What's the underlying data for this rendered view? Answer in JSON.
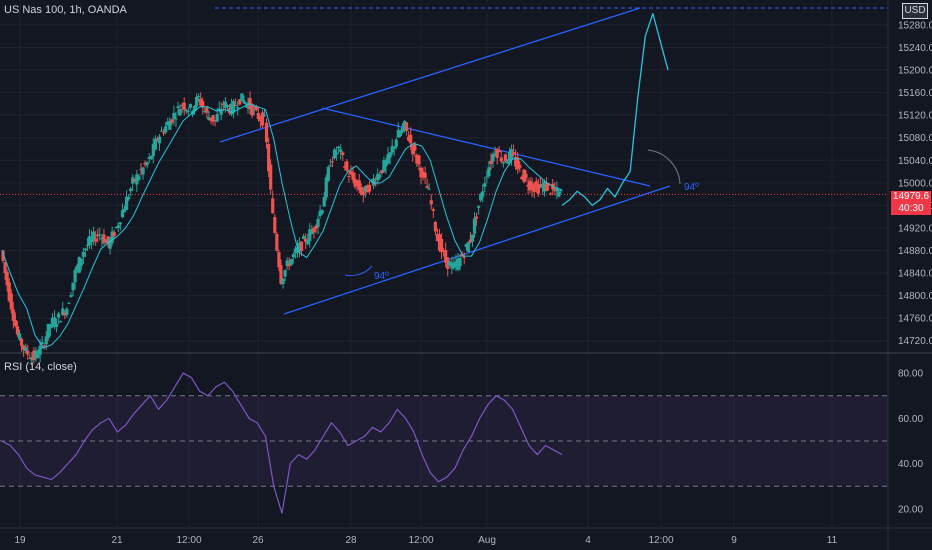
{
  "header": {
    "symbol_title": "US Nas 100, 1h, OANDA",
    "indicator_title": "RSI (14, close)",
    "currency": "USD"
  },
  "last_price": {
    "value": "14979.6",
    "countdown": "40:30"
  },
  "colors": {
    "bg": "#131722",
    "grid": "#1e222d",
    "up": "#26a69a",
    "down": "#ef5350",
    "channel": "#2962ff",
    "projection": "#26c6da",
    "rsi_line": "#7e57c2",
    "rsi_band": "#7e57c2",
    "text": "#b2b5be",
    "last_price": "#f23645"
  },
  "annotations": {
    "angle_1": "94º",
    "angle_2": "94º"
  },
  "chart_data": [
    {
      "type": "candlestick",
      "title": "US Nas 100, 1h, OANDA",
      "x_ticks": [
        "19",
        "21",
        "12:00",
        "26",
        "28",
        "12:00",
        "Aug",
        "4",
        "12:00",
        "9",
        "11"
      ],
      "y_ticks": [
        15280,
        15240,
        15200,
        15160,
        15120,
        15080,
        15040,
        15000,
        14960,
        14920,
        14880,
        14840,
        14800,
        14760,
        14720
      ],
      "ylim": [
        14700,
        15310
      ],
      "last_price": 14979.6,
      "close_path": [
        14880,
        14800,
        14730,
        14700,
        14690,
        14710,
        14750,
        14760,
        14780,
        14840,
        14880,
        14900,
        14910,
        14890,
        14920,
        14960,
        15000,
        15020,
        15040,
        15080,
        15100,
        15120,
        15140,
        15130,
        15150,
        15120,
        15110,
        15140,
        15130,
        15150,
        15140,
        15120,
        15110,
        14940,
        14830,
        14860,
        14880,
        14900,
        14920,
        14960,
        15040,
        15060,
        15020,
        15000,
        14980,
        15000,
        15020,
        15040,
        15080,
        15100,
        15060,
        15020,
        14980,
        14900,
        14860,
        14850,
        14870,
        14900,
        14960,
        15020,
        15060,
        15040,
        15050,
        15020,
        15000,
        14990,
        14995,
        14985,
        14980
      ],
      "series": [
        {
          "name": "",
          "values": []
        }
      ],
      "channel_upper": {
        "from": [
          "26",
          15150
        ],
        "to": [
          "12:00",
          15310
        ]
      },
      "channel_lower": {
        "from": [
          "26",
          14770
        ],
        "to": [
          "12:00",
          14990
        ]
      },
      "triangle_upper": {
        "from": [
          "26",
          15150
        ],
        "to": [
          "12:00",
          14995
        ]
      },
      "projection": [
        14960,
        14970,
        14985,
        14975,
        14960,
        14970,
        14990,
        14975,
        15000,
        15020,
        15150,
        15260,
        15300,
        15250,
        15200
      ]
    },
    {
      "type": "line",
      "title": "RSI (14, close)",
      "y_ticks": [
        80,
        60,
        40,
        20
      ],
      "ylim": [
        12,
        88
      ],
      "bands": [
        30,
        50,
        70
      ],
      "values": [
        50,
        48,
        44,
        38,
        35,
        34,
        33,
        36,
        40,
        44,
        50,
        55,
        58,
        60,
        54,
        57,
        62,
        66,
        70,
        64,
        68,
        74,
        80,
        78,
        72,
        70,
        74,
        76,
        72,
        66,
        60,
        58,
        52,
        30,
        18,
        40,
        44,
        42,
        46,
        52,
        58,
        54,
        48,
        50,
        52,
        56,
        54,
        58,
        64,
        60,
        54,
        44,
        36,
        32,
        34,
        38,
        46,
        52,
        60,
        66,
        70,
        68,
        64,
        56,
        48,
        44,
        48,
        46,
        44
      ]
    }
  ]
}
